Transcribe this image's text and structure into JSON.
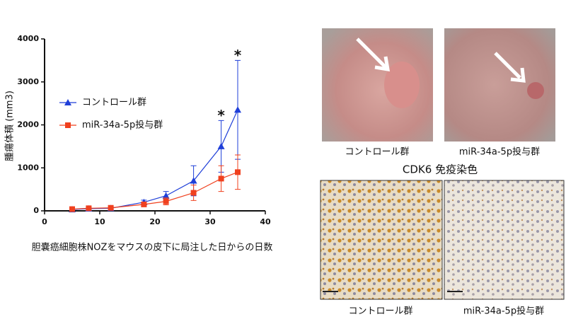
{
  "chart_data": {
    "type": "line",
    "ylabel": "腫瘍体積 (mm3)",
    "xlabel": "胆嚢癌細胞株NOZをマウスの皮下に局注した日からの日数",
    "x": [
      5,
      8,
      12,
      18,
      22,
      27,
      32,
      35
    ],
    "series": [
      {
        "name": "コントロール群",
        "color": "#1f3fd8",
        "marker": "triangle",
        "values": [
          30,
          50,
          60,
          200,
          350,
          700,
          1500,
          2350
        ],
        "errors": [
          20,
          30,
          30,
          50,
          100,
          350,
          600,
          1150
        ]
      },
      {
        "name": "miR-34a-5p投与群",
        "color": "#f0401e",
        "marker": "square",
        "values": [
          40,
          60,
          70,
          150,
          220,
          420,
          750,
          900
        ],
        "errors": [
          20,
          20,
          20,
          50,
          80,
          180,
          300,
          400
        ]
      }
    ],
    "annotations": [
      {
        "text": "*",
        "x": 32
      },
      {
        "text": "*",
        "x": 35
      }
    ],
    "xlim": [
      0,
      40
    ],
    "xticks": [
      0,
      10,
      20,
      30,
      40
    ],
    "ylim": [
      0,
      4000
    ],
    "yticks": [
      0,
      1000,
      2000,
      3000,
      4000
    ],
    "grid": false
  },
  "figure": {
    "photo_labels": [
      "コントロール群",
      "miR-34a-5p投与群"
    ],
    "stain_title": "CDK6 免疫染色",
    "stain_labels": [
      "コントロール群",
      "miR-34a-5p投与群"
    ]
  }
}
